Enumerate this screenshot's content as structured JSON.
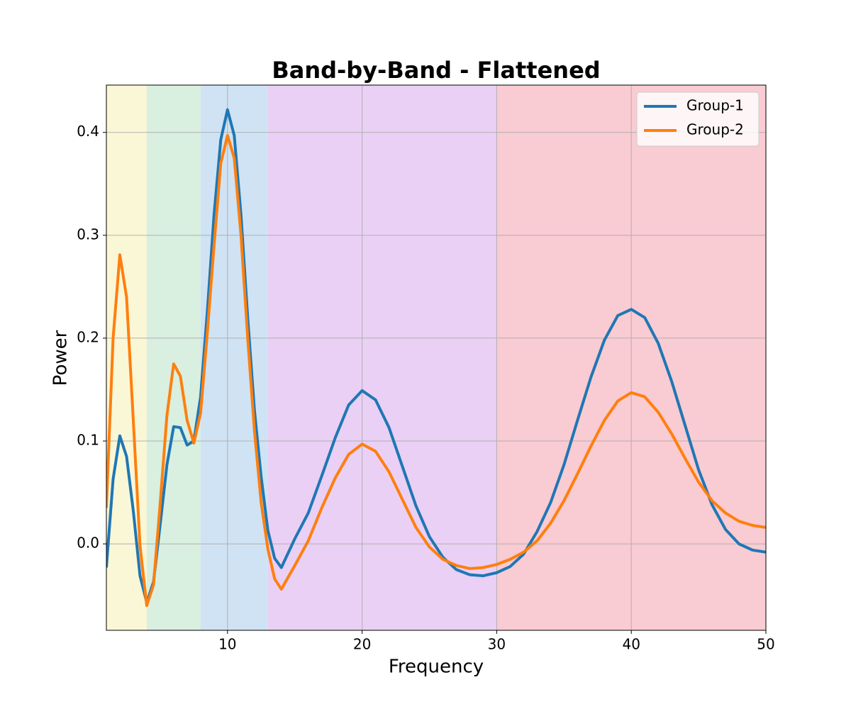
{
  "chart_data": {
    "type": "line",
    "title": "Band-by-Band - Flattened",
    "x_label": "Frequency",
    "y_label": "Power",
    "x": [
      1,
      1.5,
      2,
      2.5,
      3,
      3.5,
      4,
      4.5,
      5,
      5.5,
      6,
      6.5,
      7,
      7.5,
      8,
      8.5,
      9,
      9.5,
      10,
      10.5,
      11,
      11.5,
      12,
      12.5,
      13,
      13.5,
      14,
      15,
      16,
      17,
      18,
      19,
      20,
      21,
      22,
      23,
      24,
      25,
      26,
      27,
      28,
      29,
      30,
      31,
      32,
      33,
      34,
      35,
      36,
      37,
      38,
      39,
      40,
      41,
      42,
      43,
      44,
      45,
      46,
      47,
      48,
      49,
      50
    ],
    "series": [
      {
        "name": "Group-1",
        "color": "#1f77b4",
        "values": [
          -0.023,
          0.063,
          0.105,
          0.085,
          0.032,
          -0.031,
          -0.057,
          -0.037,
          0.019,
          0.077,
          0.114,
          0.113,
          0.096,
          0.1,
          0.143,
          0.226,
          0.32,
          0.393,
          0.422,
          0.397,
          0.32,
          0.22,
          0.13,
          0.065,
          0.013,
          -0.014,
          -0.023,
          0.005,
          0.03,
          0.066,
          0.103,
          0.135,
          0.149,
          0.14,
          0.113,
          0.075,
          0.037,
          0.007,
          -0.013,
          -0.025,
          -0.03,
          -0.031,
          -0.028,
          -0.022,
          -0.01,
          0.012,
          0.04,
          0.077,
          0.12,
          0.162,
          0.198,
          0.222,
          0.228,
          0.22,
          0.195,
          0.158,
          0.115,
          0.072,
          0.038,
          0.014,
          0.0,
          -0.006,
          -0.008
        ]
      },
      {
        "name": "Group-2",
        "color": "#ff7f0e",
        "values": [
          0.035,
          0.2,
          0.281,
          0.24,
          0.12,
          -0.002,
          -0.06,
          -0.04,
          0.04,
          0.125,
          0.175,
          0.163,
          0.12,
          0.098,
          0.127,
          0.205,
          0.29,
          0.37,
          0.397,
          0.375,
          0.3,
          0.2,
          0.11,
          0.04,
          -0.005,
          -0.034,
          -0.044,
          -0.021,
          0.003,
          0.035,
          0.064,
          0.087,
          0.097,
          0.09,
          0.07,
          0.043,
          0.016,
          -0.003,
          -0.015,
          -0.021,
          -0.024,
          -0.023,
          -0.02,
          -0.015,
          -0.008,
          0.003,
          0.02,
          0.042,
          0.068,
          0.095,
          0.12,
          0.139,
          0.147,
          0.143,
          0.128,
          0.107,
          0.083,
          0.06,
          0.042,
          0.03,
          0.022,
          0.018,
          0.016
        ]
      }
    ],
    "bands": [
      {
        "range": [
          1,
          4
        ],
        "color": "#faf7d6"
      },
      {
        "range": [
          4,
          8
        ],
        "color": "#d9efe0"
      },
      {
        "range": [
          8,
          13
        ],
        "color": "#cfe3f4"
      },
      {
        "range": [
          13,
          30
        ],
        "color": "#ead0f5"
      },
      {
        "range": [
          30,
          50
        ],
        "color": "#f9cbd2"
      }
    ],
    "xlim": [
      1,
      50
    ],
    "ylim": [
      -0.084,
      0.446
    ],
    "xticks": [
      10,
      20,
      30,
      40,
      50
    ],
    "yticks": [
      {
        "value": 0,
        "label": "0.0"
      },
      0.1,
      0.2,
      0.3,
      0.4
    ],
    "grid": true,
    "legend": "upper right"
  }
}
